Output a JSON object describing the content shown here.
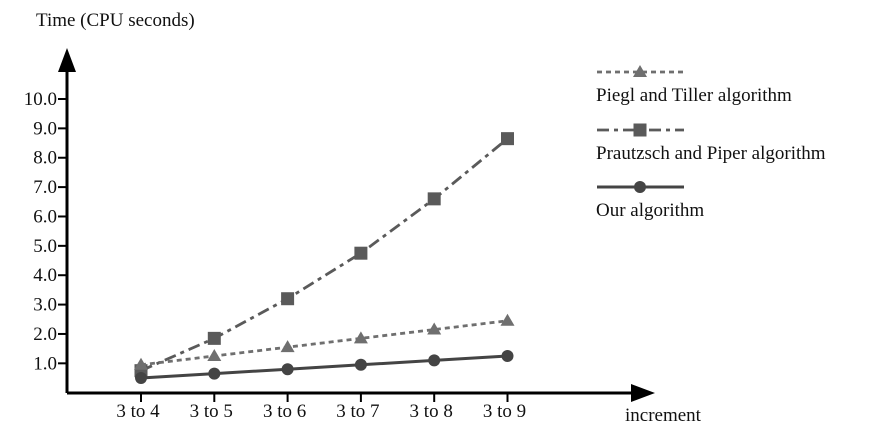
{
  "chart_data": {
    "type": "line",
    "ylabel": "Time (CPU seconds)",
    "xlabel": "increment",
    "categories": [
      "3 to 4",
      "3 to 5",
      "3 to 6",
      "3 to 7",
      "3 to 8",
      "3 to 9"
    ],
    "yticks": [
      "1.0",
      "2.0",
      "3.0",
      "4.0",
      "5.0",
      "6.0",
      "7.0",
      "8.0",
      "9.0",
      "10.0"
    ],
    "ylim": [
      0,
      10
    ],
    "grid": false,
    "legend_position": "top-right",
    "series": [
      {
        "name": "Piegl and Tiller algorithm",
        "values": [
          0.95,
          1.25,
          1.55,
          1.85,
          2.15,
          2.45
        ],
        "marker": "triangle",
        "dash": "dotted",
        "color": "#6f6f6f"
      },
      {
        "name": "Prautzsch and Piper algorithm",
        "values": [
          0.75,
          1.85,
          3.2,
          4.75,
          6.6,
          8.65
        ],
        "marker": "square",
        "dash": "dash-dot",
        "color": "#5a5a5a"
      },
      {
        "name": "Our algorithm",
        "values": [
          0.5,
          0.65,
          0.8,
          0.95,
          1.1,
          1.25
        ],
        "marker": "circle",
        "dash": "solid",
        "color": "#444444"
      }
    ]
  }
}
